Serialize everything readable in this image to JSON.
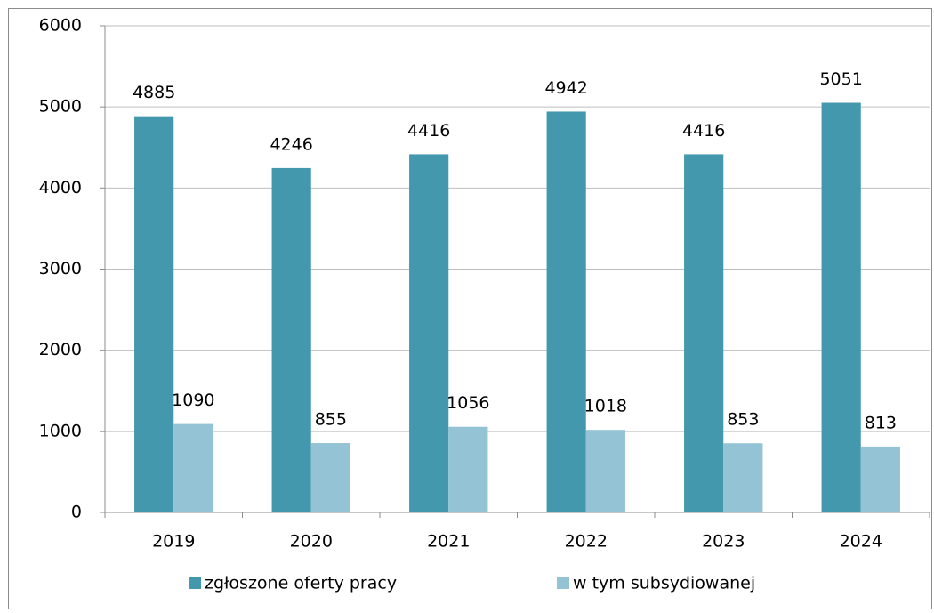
{
  "chart_data": {
    "type": "bar",
    "categories": [
      "2019",
      "2020",
      "2021",
      "2022",
      "2023",
      "2024"
    ],
    "series": [
      {
        "name": "zgłoszone oferty pracy",
        "color": "#4398ae",
        "values": [
          4885,
          4246,
          4416,
          4942,
          4416,
          5051
        ]
      },
      {
        "name": "w tym subsydiowanej",
        "color": "#93c3d5",
        "values": [
          1090,
          855,
          1056,
          1018,
          853,
          813
        ]
      }
    ],
    "ylim": [
      0,
      6000
    ],
    "yticks": [
      0,
      1000,
      2000,
      3000,
      4000,
      5000,
      6000
    ],
    "grid": true,
    "legend": "bottom"
  }
}
